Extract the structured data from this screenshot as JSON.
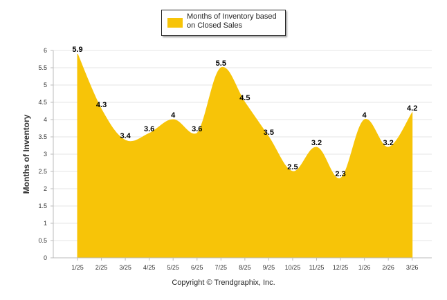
{
  "chart_data": {
    "type": "area",
    "title": "",
    "categories": [
      "1/25",
      "2/25",
      "3/25",
      "4/25",
      "5/25",
      "6/25",
      "7/25",
      "8/25",
      "9/25",
      "10/25",
      "11/25",
      "12/25",
      "1/26",
      "2/26",
      "3/26"
    ],
    "series": [
      {
        "name": "Months of Inventory based on Closed Sales",
        "values": [
          5.9,
          4.3,
          3.4,
          3.6,
          4,
          3.6,
          5.5,
          4.5,
          3.5,
          2.5,
          3.2,
          2.3,
          4,
          3.2,
          4.2
        ]
      }
    ],
    "data_labels": [
      "5.9",
      "4.3",
      "3.4",
      "3.6",
      "4",
      "3.6",
      "5.5",
      "4.5",
      "3.5",
      "2.5",
      "3.2",
      "2.3",
      "4",
      "3.2",
      "4.2"
    ],
    "ylabel": "Months of Inventory",
    "xlabel": "",
    "ylim": [
      0,
      6
    ],
    "yticks": [
      "0",
      "0.5",
      "1",
      "1.5",
      "2",
      "2.5",
      "3",
      "3.5",
      "4",
      "4.5",
      "5",
      "5.5",
      "6"
    ],
    "grid": true,
    "legend_position": "top-center",
    "color": "#F7C408"
  },
  "legend": {
    "label": "Months of Inventory based on Closed Sales"
  },
  "footer": {
    "copyright": "Copyright © Trendgraphix, Inc."
  }
}
